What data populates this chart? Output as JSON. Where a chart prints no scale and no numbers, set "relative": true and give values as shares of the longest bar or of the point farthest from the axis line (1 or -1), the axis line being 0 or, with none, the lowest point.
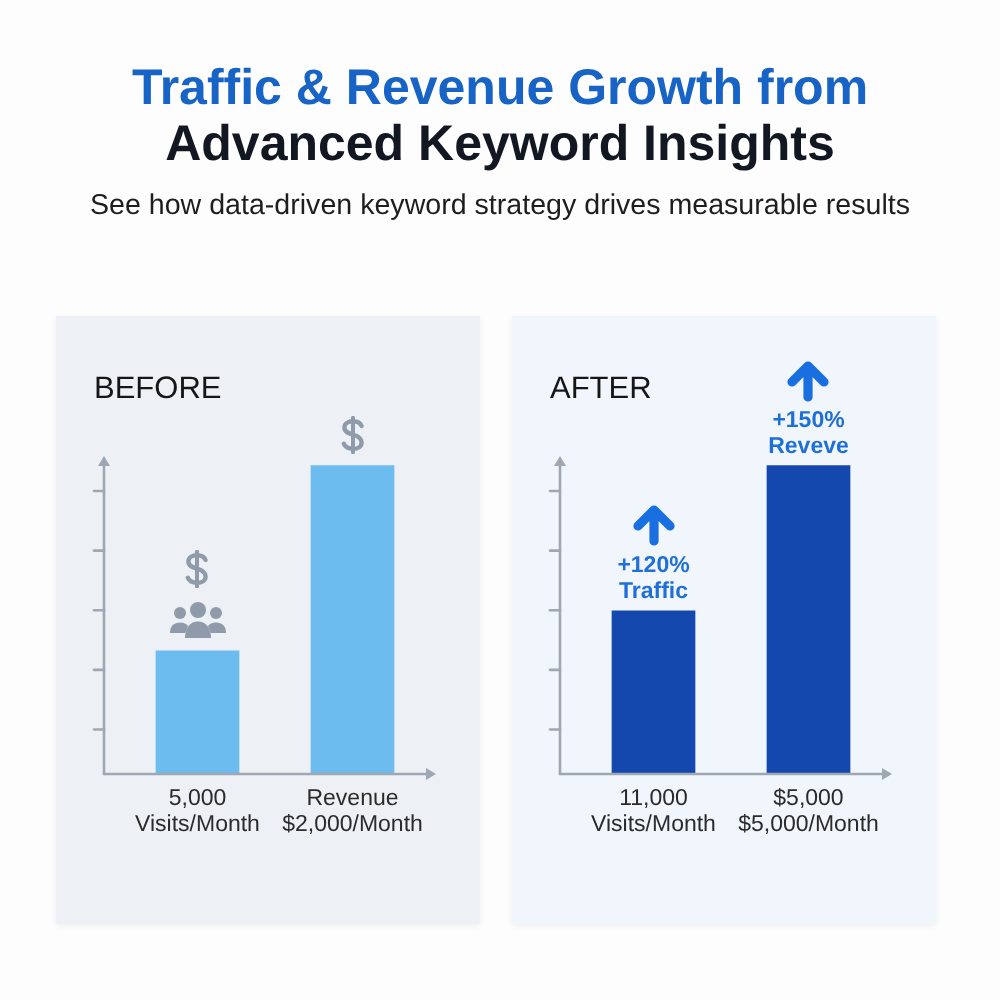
{
  "chart_data": [
    {
      "type": "other",
      "title": "Traffic & Revenue Growth from Advanced Keyword Insights",
      "subtitle": "See how data-driven keyword strategy drives measurable results"
    },
    {
      "type": "bar",
      "title": "BEFORE",
      "categories": [
        "5,000 Visits/Month",
        "Revenue $2,000/Month"
      ],
      "values": [
        0.4,
        1
      ],
      "color": "#6cbcf0",
      "relative": true
    },
    {
      "type": "bar",
      "title": "AFTER",
      "categories": [
        "11,000 Visits/Month",
        "$5,000 $5,000/Month"
      ],
      "values": [
        0.53,
        1
      ],
      "color": "#1548ae",
      "relative": true,
      "annotations": [
        {
          "text": "+120% Traffic",
          "x": "11,000 Visits/Month",
          "y": 0.53
        },
        {
          "text": "+150% Reveve",
          "x": "$5,000 $5,000/Month",
          "y": 1
        }
      ]
    }
  ]
}
